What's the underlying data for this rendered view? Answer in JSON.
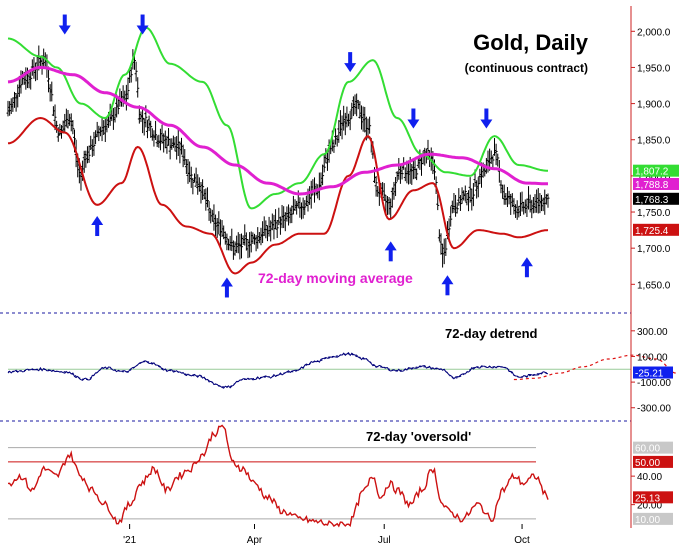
{
  "colors": {
    "background": "#ffffff",
    "price_bar": "#000000",
    "upper_band": "#33dd33",
    "lower_band": "#cc1111",
    "moving_average": "#e020d0",
    "arrow": "#1020ee",
    "axis_line": "#cc2020",
    "separator": "#1a1aa0",
    "detrend_line": "#00007a",
    "detrend_projection": "#dd1111",
    "oversold_line": "#cc1111",
    "ref_line_50": "#cc1111",
    "ref_line_gray": "#aaaaaa",
    "tag_gray": "#c8c8c8"
  },
  "chart_data": [
    {
      "type": "ohlc",
      "title": "Gold, Daily",
      "subtitle": "(continuous contract)",
      "annotation": "72-day moving average",
      "ylim": [
        1620,
        2035
      ],
      "yticks": [
        "2,000.0",
        "1,950.0",
        "1,900.0",
        "1,850.0",
        "1,800.0",
        "1,750.0",
        "1,700.0",
        "1,650.0"
      ],
      "ytick_values": [
        2000,
        1950,
        1900,
        1850,
        1800,
        1750,
        1700,
        1650
      ],
      "xticks": [
        "'21",
        "Apr",
        "Jul",
        "Oct"
      ],
      "xtick_index": [
        75,
        152,
        232,
        317
      ],
      "n_bars": 334,
      "closes_anchor_index": [
        0,
        10,
        22,
        32,
        38,
        45,
        48,
        60,
        72,
        78,
        82,
        95,
        105,
        115,
        130,
        140,
        150,
        160,
        170,
        182,
        190,
        200,
        208,
        215,
        222,
        228,
        235,
        242,
        250,
        258,
        262,
        268,
        275,
        285,
        293,
        300,
        307,
        314,
        322,
        333
      ],
      "closes_anchor_value": [
        1890,
        1935,
        1960,
        1860,
        1880,
        1800,
        1830,
        1870,
        1905,
        1960,
        1880,
        1850,
        1840,
        1795,
        1730,
        1700,
        1710,
        1725,
        1740,
        1760,
        1780,
        1840,
        1880,
        1895,
        1870,
        1780,
        1760,
        1810,
        1805,
        1830,
        1820,
        1690,
        1760,
        1775,
        1805,
        1830,
        1770,
        1755,
        1760,
        1768
      ],
      "series": [
        {
          "name": "upper",
          "x_index": [
            0,
            20,
            30,
            45,
            60,
            72,
            85,
            100,
            120,
            135,
            150,
            165,
            180,
            195,
            210,
            225,
            240,
            255,
            270,
            285,
            300,
            315,
            333
          ],
          "values": [
            1990,
            1965,
            1950,
            1900,
            1880,
            1940,
            2005,
            1955,
            1930,
            1870,
            1755,
            1775,
            1790,
            1830,
            1930,
            1960,
            1880,
            1830,
            1805,
            1800,
            1855,
            1815,
            1807
          ]
        },
        {
          "name": "lower",
          "x_index": [
            0,
            20,
            35,
            55,
            70,
            80,
            95,
            110,
            125,
            140,
            150,
            165,
            180,
            195,
            210,
            222,
            235,
            250,
            262,
            275,
            290,
            305,
            315,
            333
          ],
          "values": [
            1845,
            1880,
            1860,
            1760,
            1790,
            1840,
            1760,
            1730,
            1720,
            1665,
            1680,
            1705,
            1720,
            1720,
            1800,
            1855,
            1740,
            1780,
            1790,
            1700,
            1725,
            1720,
            1715,
            1725
          ]
        },
        {
          "name": "ma",
          "x_index": [
            0,
            20,
            40,
            60,
            80,
            100,
            120,
            140,
            160,
            180,
            200,
            220,
            240,
            260,
            280,
            300,
            320,
            333
          ],
          "values": [
            1930,
            1950,
            1940,
            1915,
            1895,
            1870,
            1840,
            1815,
            1790,
            1775,
            1785,
            1805,
            1815,
            1830,
            1825,
            1810,
            1790,
            1789
          ]
        }
      ],
      "arrows": [
        {
          "index": 35,
          "direction": "down",
          "value": 1990
        },
        {
          "index": 55,
          "direction": "up",
          "value": 1750
        },
        {
          "index": 83,
          "direction": "down",
          "value": 1990
        },
        {
          "index": 135,
          "direction": "up",
          "value": 1665
        },
        {
          "index": 211,
          "direction": "down",
          "value": 1938
        },
        {
          "index": 236,
          "direction": "up",
          "value": 1715
        },
        {
          "index": 250,
          "direction": "down",
          "value": 1860
        },
        {
          "index": 271,
          "direction": "up",
          "value": 1668
        },
        {
          "index": 295,
          "direction": "down",
          "value": 1860
        },
        {
          "index": 320,
          "direction": "up",
          "value": 1693
        }
      ],
      "last_values": [
        {
          "label": "1,807.2",
          "value": 1807.2,
          "color": "#33dd33"
        },
        {
          "label": "1,788.8",
          "value": 1788.8,
          "color": "#e020d0"
        },
        {
          "label": "1,768.3",
          "value": 1768.3,
          "color": "#000000"
        },
        {
          "label": "1,725.4",
          "value": 1725.4,
          "color": "#cc1111"
        }
      ]
    },
    {
      "type": "line",
      "title": "72-day detrend",
      "ylim": [
        -380,
        400
      ],
      "yticks": [
        "300.00",
        "100.00",
        "-100.00",
        "-300.00"
      ],
      "ytick_values": [
        300,
        100,
        -100,
        -300
      ],
      "x_index": [
        0,
        20,
        35,
        48,
        60,
        72,
        85,
        100,
        115,
        135,
        145,
        160,
        175,
        190,
        200,
        210,
        220,
        228,
        240,
        255,
        268,
        275,
        290,
        305,
        315,
        333
      ],
      "values": [
        -20,
        0,
        -20,
        -80,
        10,
        -20,
        60,
        -10,
        -50,
        -140,
        -80,
        -60,
        -20,
        60,
        100,
        120,
        80,
        20,
        -10,
        20,
        0,
        -70,
        20,
        20,
        -60,
        -25
      ],
      "projection_x": [
        312,
        325,
        340,
        355,
        370,
        385,
        400,
        412
      ],
      "projection_values": [
        -80,
        -70,
        -30,
        20,
        80,
        110,
        80,
        -30
      ],
      "last_value": {
        "label": "-25.21",
        "value": -25.21
      }
    },
    {
      "type": "line",
      "title": "72-day 'oversold'",
      "ylim": [
        5,
        78
      ],
      "yticks": [
        "40.00",
        "20.00"
      ],
      "ytick_values": [
        40,
        20
      ],
      "reference_lines": [
        {
          "value": 60,
          "label": "60.00",
          "color": "#aaaaaa"
        },
        {
          "value": 50,
          "label": "50.00",
          "color": "#cc1111"
        },
        {
          "value": 10,
          "label": "10.00",
          "color": "#aaaaaa"
        }
      ],
      "x_index": [
        0,
        8,
        15,
        22,
        30,
        38,
        45,
        52,
        60,
        68,
        75,
        82,
        90,
        98,
        105,
        112,
        120,
        127,
        133,
        138,
        145,
        152,
        160,
        170,
        180,
        190,
        200,
        210,
        220,
        225,
        230,
        235,
        240,
        248,
        255,
        262,
        268,
        272,
        280,
        290,
        298,
        305,
        312,
        318,
        325,
        333
      ],
      "values": [
        35,
        40,
        30,
        45,
        40,
        55,
        40,
        30,
        20,
        8,
        20,
        35,
        45,
        30,
        40,
        45,
        55,
        70,
        75,
        50,
        45,
        35,
        25,
        15,
        10,
        8,
        6,
        7,
        30,
        40,
        25,
        35,
        30,
        20,
        30,
        45,
        20,
        15,
        10,
        20,
        10,
        30,
        40,
        35,
        40,
        25
      ],
      "last_value": {
        "label": "25.13",
        "value": 25.13
      }
    }
  ]
}
